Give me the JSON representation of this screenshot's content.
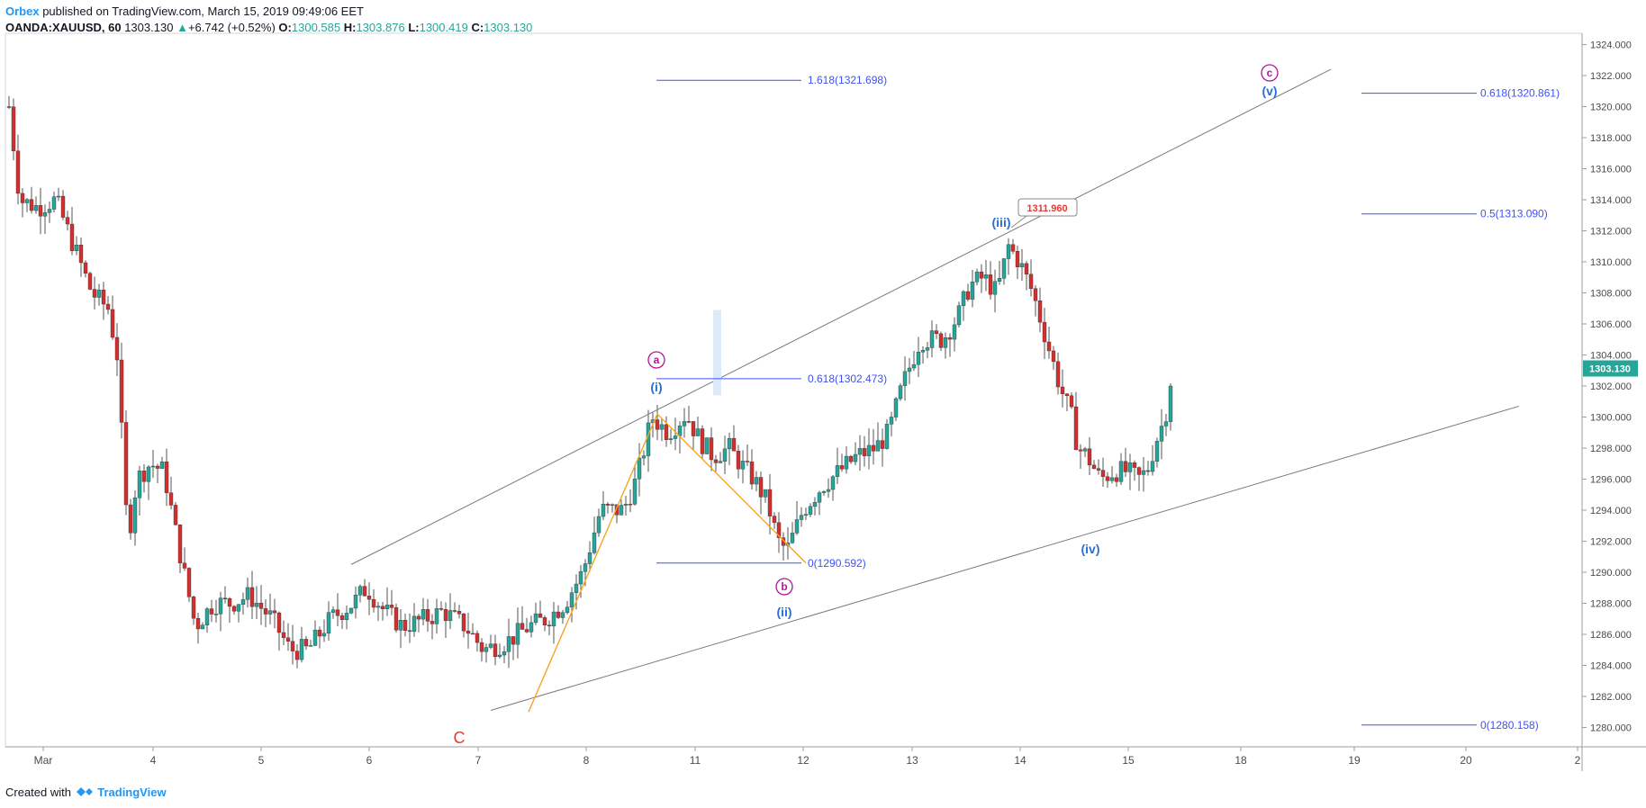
{
  "header": {
    "publisher": "Orbex",
    "published_text": "published on TradingView.com, March 15, 2019 09:49:06 EET",
    "symbol": "OANDA:XAUUSD, 60",
    "last": "1303.130",
    "change": "+6.742 (+0.52%)",
    "o_label": "O:",
    "o_value": "1300.585",
    "h_label": "H:",
    "h_value": "1303.876",
    "l_label": "L:",
    "l_value": "1300.419",
    "c_label": "C:",
    "c_value": "1303.130"
  },
  "footer": {
    "created_with": "Created with",
    "brand": "TradingView"
  },
  "chart_data": {
    "type": "candlestick",
    "title": "OANDA:XAUUSD, 60",
    "ylim": [
      1279,
      1324.4
    ],
    "y_ticks": [
      "1324.000",
      "1322.000",
      "1320.000",
      "1318.000",
      "1316.000",
      "1314.000",
      "1312.000",
      "1310.000",
      "1308.000",
      "1306.000",
      "1304.000",
      "1302.000",
      "1300.000",
      "1298.000",
      "1296.000",
      "1294.000",
      "1292.000",
      "1290.000",
      "1288.000",
      "1286.000",
      "1284.000",
      "1282.000",
      "1280.000"
    ],
    "x_ticks": [
      "Mar",
      "4",
      "5",
      "6",
      "7",
      "8",
      "11",
      "12",
      "13",
      "14",
      "15",
      "18",
      "19",
      "20",
      "2"
    ],
    "last_price": "1303.130",
    "colors": {
      "up": "#26a69a",
      "down": "#d32f2f",
      "wick": "#555555",
      "fib": "#3f51f5",
      "wave_blue": "#2a6fd6",
      "wave_magenta": "#b0179a",
      "wave_red": "#e53935",
      "orange": "#f5a623"
    },
    "anchors": [
      {
        "day": "Mar",
        "close": 1320
      },
      {
        "day": "4",
        "close": 1297
      },
      {
        "day": "5",
        "close": 1287
      },
      {
        "day": "6",
        "close": 1287.5
      },
      {
        "day": "7",
        "close": 1287
      },
      {
        "day": "8",
        "close": 1287.5
      },
      {
        "day": "11",
        "close": 1299
      },
      {
        "day": "12",
        "close": 1292
      },
      {
        "day": "13",
        "close": 1302
      },
      {
        "day": "14",
        "close": 1311
      },
      {
        "day": "15",
        "close": 1296.5
      }
    ],
    "swings": [
      {
        "label": "(i)",
        "price": 1300.8
      },
      {
        "label": "(ii)",
        "price": 1290.6
      },
      {
        "label": "(iii)",
        "price": 1311.2
      },
      {
        "label": "(iv)",
        "price": 1293.2
      },
      {
        "label": "C",
        "price": 1281
      }
    ],
    "fib_levels": [
      {
        "label": "1.618(1321.698)",
        "price": 1321.698
      },
      {
        "label": "0.618(1302.473)",
        "price": 1302.473
      },
      {
        "label": "0(1290.592)",
        "price": 1290.592
      },
      {
        "label": "0.618(1320.861)",
        "price": 1320.861
      },
      {
        "label": "0.5(1313.090)",
        "price": 1313.09
      },
      {
        "label": "0(1280.158)",
        "price": 1280.158
      }
    ],
    "callout": "1311.960",
    "wave_labels": {
      "a": "a",
      "b": "b",
      "c": "c",
      "i": "(i)",
      "ii": "(ii)",
      "iii": "(iii)",
      "iv": "(iv)",
      "v": "(v)",
      "C": "C"
    }
  }
}
